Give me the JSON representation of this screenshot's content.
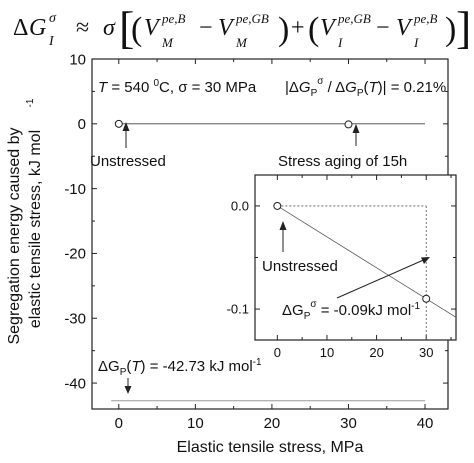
{
  "equation": {
    "lhs_delta": "Δ",
    "lhs_G": "G",
    "lhs_sub": "I",
    "lhs_sup": "σ",
    "approx": "≈",
    "sigma": "σ",
    "open_bracket": "[",
    "close_bracket": "]",
    "open_paren": "(",
    "close_paren": ")",
    "minus": "−",
    "plus": "+",
    "V": "V",
    "sub_M": "M",
    "sub_I": "I",
    "sup_pe_B": "pe,B",
    "sup_pe_GB": "pe,GB"
  },
  "conditions": {
    "T_symbol": "T",
    "T_value": " = 540 ",
    "degree": "0",
    "T_unit": "C, σ = 30 MPa"
  },
  "ratio_label": {
    "open": "|Δ",
    "G": "G",
    "sub_p": "P",
    "sup_sigma": "σ",
    "mid": " / Δ",
    "G2": "G",
    "sub_p2": "P",
    "T_paren_open": "(",
    "T": "T",
    "rest": ")| = 0.21%"
  },
  "chart_data": [
    {
      "type": "line",
      "panel": "main",
      "xlabel": "Elastic tensile stress, MPa",
      "ylabel_line1": "Segregation energy caused by",
      "ylabel_line2": "elastic tensile stress, kJ mol",
      "ylabel_sup": "-1",
      "xlim": [
        -3.5,
        43
      ],
      "ylim": [
        -44,
        10
      ],
      "xticks": [
        0,
        10,
        20,
        30,
        40
      ],
      "yticks": [
        10,
        0,
        -10,
        -20,
        -30,
        -40
      ],
      "xtick_labels": [
        "0",
        "10",
        "20",
        "30",
        "40"
      ],
      "ytick_labels": [
        "10",
        "0",
        "-10",
        "-20",
        "-30",
        "-40"
      ],
      "series": [
        {
          "x": [
            0,
            30
          ],
          "y": [
            0,
            -0.09
          ],
          "line_end_x": 40,
          "marker": "open-circle"
        },
        {
          "x": [
            -1,
            40
          ],
          "y": [
            -42.73,
            -42.73
          ],
          "marker": "none"
        }
      ],
      "annotations": {
        "unstressed": "Unstressed",
        "stress_aging": "Stress aging of 15h",
        "dGp_prefix": "ΔG",
        "dGp_sub": "P",
        "dGp_paren_open": "(",
        "dGp_T": "T",
        "dGp_rest": ") = -42.73 kJ mol",
        "dGp_sup": "-1"
      },
      "grid": false
    },
    {
      "type": "line",
      "panel": "inset",
      "xlim": [
        -4.5,
        36
      ],
      "ylim": [
        -0.13,
        0.03
      ],
      "xticks": [
        0,
        10,
        20,
        30
      ],
      "yticks": [
        0.0,
        -0.1
      ],
      "xtick_labels": [
        "0",
        "10",
        "20",
        "30"
      ],
      "ytick_labels": [
        "0.0",
        "-0.1"
      ],
      "series": [
        {
          "x": [
            0,
            30
          ],
          "y": [
            0,
            -0.09
          ],
          "line_end_x": 36,
          "marker": "open-circle"
        }
      ],
      "annotations": {
        "unstressed": "Unstressed",
        "dG_prefix": "ΔG",
        "dG_sub": "P",
        "dG_sup": "σ",
        "dG_rest": " = -0.09kJ mol",
        "dG_sup2": "-1"
      },
      "grid": false
    }
  ]
}
